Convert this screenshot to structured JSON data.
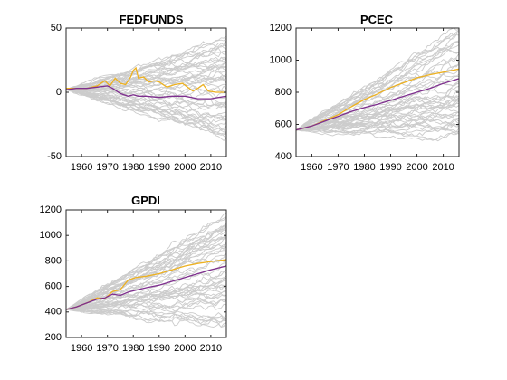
{
  "chart_data": [
    {
      "type": "line",
      "title": "FEDFUNDS",
      "xlabel": "",
      "ylabel": "",
      "xlim": [
        1954,
        2016
      ],
      "ylim": [
        -50,
        50
      ],
      "xticks": [
        1960,
        1970,
        1980,
        1990,
        2000,
        2010
      ],
      "yticks": [
        -50,
        0,
        50
      ],
      "xtick_labels": [
        "1960",
        "1970",
        "1980",
        "1990",
        "2000",
        "2010"
      ],
      "ytick_labels": [
        "-50",
        "0",
        "50"
      ],
      "grid": false,
      "simulated_paths": {
        "count": 50,
        "color": "#cccccc",
        "start": 2,
        "end_min": -40,
        "end_max": 42
      },
      "series": [
        {
          "color": "#edb120",
          "x": [
            1954,
            1958,
            1962,
            1966,
            1969,
            1971,
            1973,
            1975,
            1977,
            1979,
            1980,
            1981,
            1982,
            1984,
            1986,
            1988,
            1990,
            1993,
            1996,
            1999,
            2001,
            2003,
            2005,
            2007,
            2009,
            2012,
            2016
          ],
          "values": [
            3,
            3,
            3,
            5,
            9,
            5,
            11,
            7,
            6,
            12,
            17,
            19,
            11,
            12,
            8,
            9,
            8,
            4,
            6,
            7,
            4,
            1,
            3,
            6,
            1,
            0,
            0
          ]
        },
        {
          "color": "#7e2f8e",
          "x": [
            1954,
            1958,
            1962,
            1966,
            1970,
            1972,
            1975,
            1978,
            1980,
            1982,
            1985,
            1990,
            1995,
            2000,
            2005,
            2010,
            2016
          ],
          "values": [
            2,
            3,
            3,
            4,
            5,
            3,
            -1,
            -3,
            -2,
            -3,
            -3,
            -4,
            -3,
            -3,
            -5,
            -5,
            -3
          ]
        }
      ]
    },
    {
      "type": "line",
      "title": "PCEC",
      "xlabel": "",
      "ylabel": "",
      "xlim": [
        1954,
        2016
      ],
      "ylim": [
        400,
        1200
      ],
      "xticks": [
        1960,
        1970,
        1980,
        1990,
        2000,
        2010
      ],
      "yticks": [
        400,
        600,
        800,
        1000,
        1200
      ],
      "xtick_labels": [
        "1960",
        "1970",
        "1980",
        "1990",
        "2000",
        "2010"
      ],
      "ytick_labels": [
        "400",
        "600",
        "800",
        "1000",
        "1200"
      ],
      "grid": false,
      "simulated_paths": {
        "count": 50,
        "color": "#cccccc",
        "start": 565,
        "end_min": 520,
        "end_max": 1195
      },
      "series": [
        {
          "color": "#edb120",
          "x": [
            1954,
            1960,
            1965,
            1970,
            1975,
            1980,
            1985,
            1990,
            1995,
            2000,
            2005,
            2010,
            2016
          ],
          "values": [
            565,
            590,
            625,
            660,
            710,
            755,
            790,
            830,
            860,
            890,
            910,
            925,
            945
          ]
        },
        {
          "color": "#7e2f8e",
          "x": [
            1954,
            1960,
            1965,
            1970,
            1975,
            1980,
            1985,
            1990,
            1995,
            2000,
            2005,
            2010,
            2016
          ],
          "values": [
            565,
            590,
            620,
            650,
            680,
            705,
            725,
            750,
            775,
            800,
            825,
            855,
            885
          ]
        }
      ]
    },
    {
      "type": "line",
      "title": "GPDI",
      "xlabel": "",
      "ylabel": "",
      "xlim": [
        1954,
        2016
      ],
      "ylim": [
        200,
        1200
      ],
      "xticks": [
        1960,
        1970,
        1980,
        1990,
        2000,
        2010
      ],
      "yticks": [
        200,
        400,
        600,
        800,
        1000,
        1200
      ],
      "xtick_labels": [
        "1960",
        "1970",
        "1980",
        "1990",
        "2000",
        "2010"
      ],
      "ytick_labels": [
        "200",
        "400",
        "600",
        "800",
        "1000",
        "1200"
      ],
      "grid": false,
      "simulated_paths": {
        "count": 50,
        "color": "#cccccc",
        "start": 420,
        "end_min": 300,
        "end_max": 1170
      },
      "series": [
        {
          "color": "#edb120",
          "x": [
            1954,
            1958,
            1962,
            1966,
            1969,
            1972,
            1975,
            1978,
            1981,
            1985,
            1990,
            1995,
            2000,
            2005,
            2010,
            2016
          ],
          "values": [
            420,
            440,
            470,
            510,
            505,
            560,
            575,
            650,
            670,
            680,
            700,
            730,
            760,
            780,
            795,
            810
          ]
        },
        {
          "color": "#7e2f8e",
          "x": [
            1954,
            1958,
            1962,
            1966,
            1969,
            1972,
            1975,
            1978,
            1981,
            1985,
            1990,
            1995,
            2000,
            2005,
            2010,
            2016
          ],
          "values": [
            420,
            440,
            470,
            500,
            510,
            540,
            530,
            555,
            570,
            590,
            610,
            640,
            670,
            700,
            730,
            760
          ]
        }
      ]
    }
  ]
}
